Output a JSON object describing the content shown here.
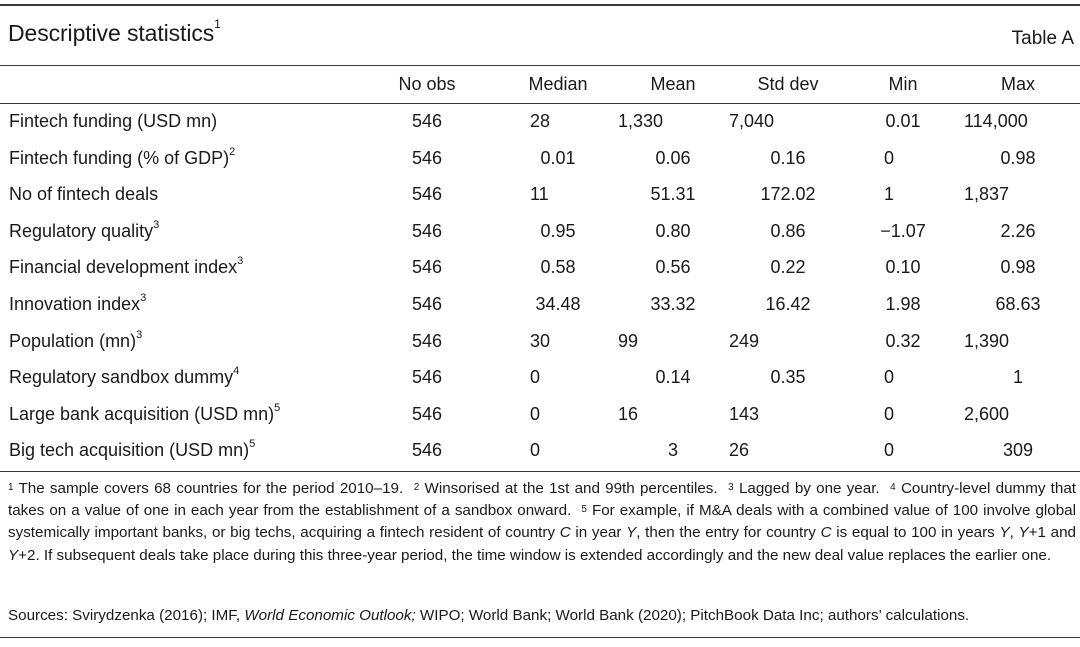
{
  "title": "Descriptive statistics",
  "title_note": "1",
  "table_label": "Table A",
  "columns": [
    "No obs",
    "Median",
    "Mean",
    "Std dev",
    "Min",
    "Max"
  ],
  "rows": [
    {
      "label": "Fintech funding (USD mn)",
      "note": "",
      "values": [
        "546",
        "28",
        "1,330",
        "7,040",
        "0.01",
        "114,000"
      ]
    },
    {
      "label": "Fintech funding (% of GDP)",
      "note": "2",
      "values": [
        "546",
        "0.01",
        "0.06",
        "0.16",
        "0",
        "0.98"
      ]
    },
    {
      "label": "No of fintech deals",
      "note": "",
      "values": [
        "546",
        "11",
        "51.31",
        "172.02",
        "1",
        "1,837"
      ]
    },
    {
      "label": "Regulatory quality",
      "note": "3",
      "values": [
        "546",
        "0.95",
        "0.80",
        "0.86",
        "−1.07",
        "2.26"
      ]
    },
    {
      "label": "Financial development index",
      "note": "3",
      "values": [
        "546",
        "0.58",
        "0.56",
        "0.22",
        "0.10",
        "0.98"
      ]
    },
    {
      "label": "Innovation index",
      "note": "3",
      "values": [
        "546",
        "34.48",
        "33.32",
        "16.42",
        "1.98",
        "68.63"
      ]
    },
    {
      "label": "Population (mn)",
      "note": "3",
      "values": [
        "546",
        "30",
        "99",
        "249",
        "0.32",
        "1,390"
      ]
    },
    {
      "label": "Regulatory sandbox dummy",
      "note": "4",
      "values": [
        "546",
        "0",
        "0.14",
        "0.35",
        "0",
        "1"
      ]
    },
    {
      "label": "Large bank acquisition (USD mn)",
      "note": "5",
      "values": [
        "546",
        "0",
        "16",
        "143",
        "0",
        "2,600"
      ]
    },
    {
      "label": "Big tech acquisition (USD mn)",
      "note": "5",
      "values": [
        "546",
        "0",
        "3",
        "26",
        "0",
        "309"
      ]
    }
  ],
  "footnotes": [
    {
      "mark": "1",
      "text": "The sample covers 68 countries for the period 2010–19."
    },
    {
      "mark": "2",
      "text": "Winsorised at the 1st and 99th percentiles."
    },
    {
      "mark": "3",
      "text": "Lagged by one year."
    },
    {
      "mark": "4",
      "text": "Country-level dummy that takes on a value of one in each year from the establishment of a sandbox onward."
    },
    {
      "mark": "5",
      "text_parts": [
        "For example, if M&A deals with a combined value of 100 involve global systemically important banks, or big techs, acquiring a fintech resident of country ",
        "C",
        " in year ",
        "Y",
        ", then the entry for country ",
        "C",
        " is equal to 100 in years ",
        "Y",
        ", ",
        "Y",
        "+1 and ",
        "Y",
        "+2. If subsequent deals take place during this three-year period, the time window is extended accordingly and the new deal value replaces the earlier one."
      ]
    }
  ],
  "sources": {
    "prefix": "Sources: Svirydzenka (2016); IMF, ",
    "italic": "World Economic Outlook;",
    "suffix": " WIPO; World Bank; World Bank (2020); PitchBook Data Inc; authors’ calculations."
  }
}
